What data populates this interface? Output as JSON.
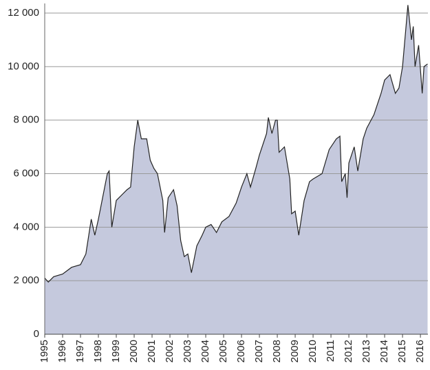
{
  "chart_data": {
    "type": "area",
    "color": "#c5c9dd",
    "line_color": "#222222",
    "grid": true,
    "x": [
      1995.0,
      1995.2,
      1995.5,
      1996.0,
      1996.5,
      1997.0,
      1997.3,
      1997.6,
      1997.8,
      1998.0,
      1998.5,
      1998.6,
      1998.75,
      1999.0,
      1999.3,
      1999.6,
      1999.8,
      2000.0,
      2000.2,
      2000.4,
      2000.7,
      2000.9,
      2001.1,
      2001.3,
      2001.6,
      2001.7,
      2001.9,
      2002.2,
      2002.4,
      2002.6,
      2002.8,
      2003.0,
      2003.2,
      2003.5,
      2003.8,
      2004.0,
      2004.3,
      2004.6,
      2004.9,
      2005.3,
      2005.7,
      2006.0,
      2006.3,
      2006.5,
      2006.8,
      2007.0,
      2007.4,
      2007.5,
      2007.7,
      2007.9,
      2008.0,
      2008.1,
      2008.4,
      2008.7,
      2008.8,
      2009.0,
      2009.2,
      2009.5,
      2009.8,
      2010.0,
      2010.5,
      2010.9,
      2011.3,
      2011.5,
      2011.6,
      2011.8,
      2011.9,
      2012.0,
      2012.3,
      2012.5,
      2012.8,
      2013.0,
      2013.4,
      2013.8,
      2014.0,
      2014.3,
      2014.6,
      2014.8,
      2015.0,
      2015.3,
      2015.5,
      2015.6,
      2015.7,
      2015.9,
      2016.1,
      2016.2,
      2016.4
    ],
    "values": [
      2100,
      1950,
      2150,
      2250,
      2500,
      2600,
      3000,
      4300,
      3700,
      4300,
      6000,
      6100,
      4000,
      5000,
      5200,
      5400,
      5500,
      7000,
      8000,
      7300,
      7300,
      6500,
      6200,
      6000,
      5000,
      3800,
      5100,
      5400,
      4800,
      3500,
      2900,
      3000,
      2300,
      3300,
      3700,
      4000,
      4100,
      3800,
      4200,
      4400,
      4900,
      5500,
      6000,
      5500,
      6200,
      6700,
      7500,
      8100,
      7500,
      8000,
      8000,
      6800,
      7000,
      5800,
      4500,
      4600,
      3700,
      5000,
      5700,
      5800,
      6000,
      6900,
      7300,
      7400,
      5700,
      6000,
      5100,
      6400,
      7000,
      6100,
      7300,
      7700,
      8200,
      9000,
      9500,
      9700,
      9000,
      9200,
      10000,
      12300,
      11000,
      11500,
      10000,
      10800,
      9000,
      10000,
      10100
    ],
    "xlim": [
      1995,
      2016.42
    ],
    "xticks": [
      1995,
      1996,
      1997,
      1998,
      1999,
      2000,
      2001,
      2002,
      2003,
      2004,
      2005,
      2006,
      2007,
      2008,
      2009,
      2010,
      2011,
      2012,
      2013,
      2014,
      2015,
      2016
    ],
    "ylim": [
      0,
      12000
    ],
    "yticks": [
      0,
      {
        "value": 2000,
        "label": "2 000"
      },
      {
        "value": 4000,
        "label": "4 000"
      },
      {
        "value": 6000,
        "label": "6 000"
      },
      {
        "value": 8000,
        "label": "8 000"
      },
      {
        "value": 10000,
        "label": "10 000"
      },
      {
        "value": 12000,
        "label": "12 000"
      }
    ]
  }
}
